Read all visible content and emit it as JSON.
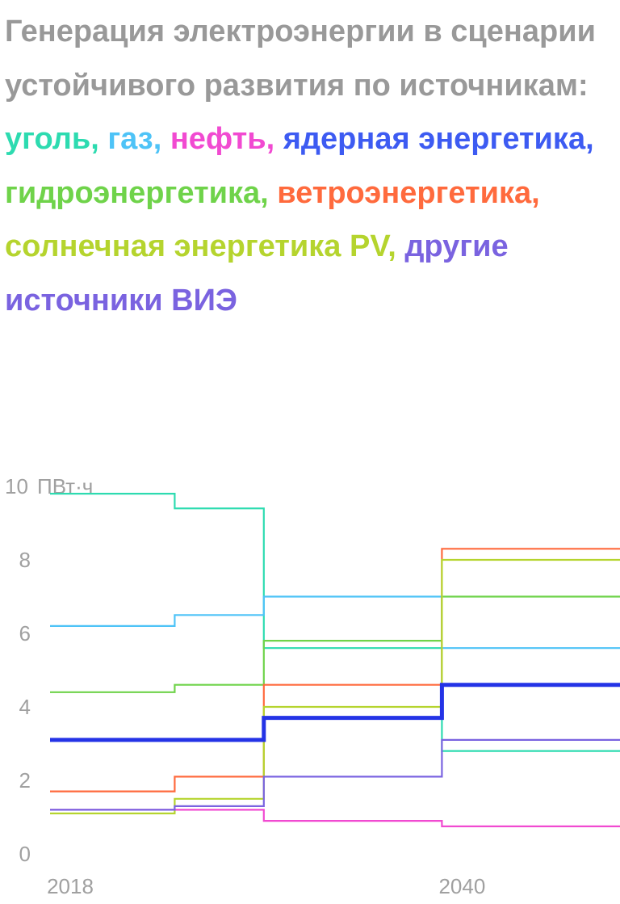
{
  "title": {
    "lead": "Генерация электроэнергии в сценарии устойчивого развития по источникам:",
    "sep": ",",
    "legend": [
      {
        "label": "уголь",
        "color": "#2ddbb0"
      },
      {
        "label": "газ",
        "color": "#4ec3f7"
      },
      {
        "label": "нефть",
        "color": "#f14ad1"
      },
      {
        "label": "ядерная энергетика",
        "color": "#3d5bf2"
      },
      {
        "label": "гидроэнергетика",
        "color": "#6fd34a"
      },
      {
        "label": "ветроэнергетика",
        "color": "#ff6a3d"
      },
      {
        "label": "солнечная энергетика PV",
        "color": "#b5d42e"
      },
      {
        "label": "другие источники ВИЭ",
        "color": "#7a63e0"
      }
    ]
  },
  "chart_data": {
    "type": "line",
    "step": true,
    "x": [
      2018,
      2025,
      2030,
      2040
    ],
    "x_end": 2050,
    "x_ticks": [
      "2018",
      "2040"
    ],
    "y_ticks": [
      "0",
      "2",
      "4",
      "6",
      "8",
      "10"
    ],
    "y_unit": "ПВт·ч",
    "ylim": [
      0,
      10
    ],
    "grid": false,
    "series": [
      {
        "name": "уголь",
        "color": "#2ddbb0",
        "values": [
          9.8,
          9.4,
          5.6,
          2.8
        ]
      },
      {
        "name": "газ",
        "color": "#4ec3f7",
        "values": [
          6.2,
          6.5,
          7.0,
          5.6
        ]
      },
      {
        "name": "нефть",
        "color": "#f14ad1",
        "values": [
          1.2,
          1.2,
          0.9,
          0.75
        ]
      },
      {
        "name": "ядерная энергетика",
        "color": "#2433e6",
        "values": [
          3.1,
          3.1,
          3.7,
          4.6
        ],
        "bold": true
      },
      {
        "name": "гидроэнергетика",
        "color": "#6fd34a",
        "values": [
          4.4,
          4.6,
          5.8,
          7.0
        ]
      },
      {
        "name": "ветроэнергетика",
        "color": "#ff6a3d",
        "values": [
          1.7,
          2.1,
          4.6,
          8.3
        ]
      },
      {
        "name": "солнечная энергетика PV",
        "color": "#b5d42e",
        "values": [
          1.1,
          1.5,
          4.0,
          8.0
        ]
      },
      {
        "name": "другие источники ВИЭ",
        "color": "#7a63e0",
        "values": [
          1.2,
          1.3,
          2.1,
          3.1
        ]
      }
    ]
  }
}
